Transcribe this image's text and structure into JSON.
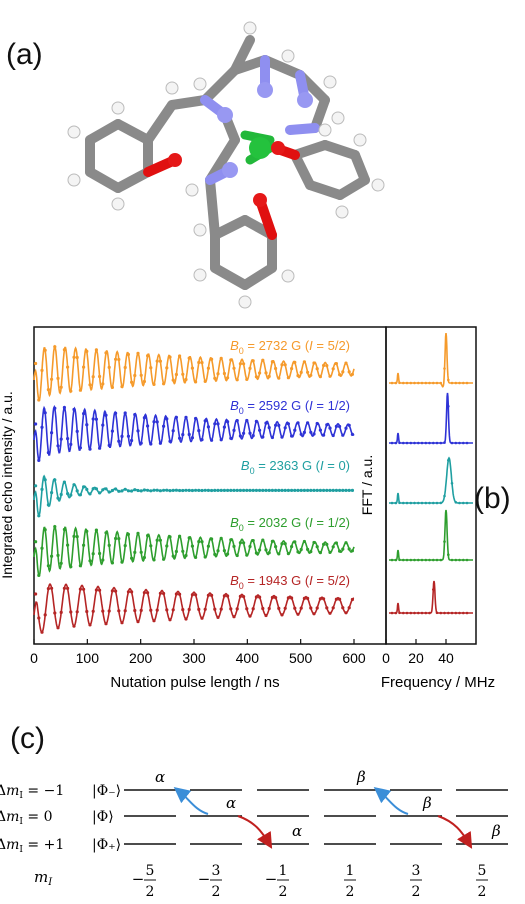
{
  "panels": {
    "a": "(a)",
    "b": "(b)",
    "c": "(c)"
  },
  "chart_data": [
    {
      "type": "line",
      "xlabel": "Nutation pulse length / ns",
      "ylabel": "Integrated echo intensity / a.u.",
      "xlim": [
        0,
        600
      ],
      "xticks": [
        "0",
        "100",
        "200",
        "300",
        "400",
        "500",
        "600"
      ],
      "grid": false,
      "series": [
        {
          "name": "B0 = 2732 G (I = 5/2)",
          "label_b": "B",
          "label_sub": "0",
          "label_rest": " = 2732 G (",
          "label_i": "I",
          "label_tail": " = 5/2)",
          "color": "#f59a2b",
          "period_ns": 19.5,
          "decay_ns": 420,
          "offset": 0.5
        },
        {
          "name": "B0 = 2592 G (I = 1/2)",
          "label_b": "B",
          "label_sub": "0",
          "label_rest": " = 2592 G (",
          "label_i": "I",
          "label_tail": " = 1/2)",
          "color": "#2e33d6",
          "period_ns": 19.0,
          "decay_ns": 380,
          "offset": 0.3
        },
        {
          "name": "B0 = 2363 G (I = 0)",
          "label_b": "B",
          "label_sub": "0",
          "label_rest": " = 2363 G (",
          "label_i": "I",
          "label_tail": " = 0)",
          "color": "#1f9fa1",
          "period_ns": 19.0,
          "decay_ns": 55,
          "offset": 0.2
        },
        {
          "name": "B0 = 2032 G (I = 1/2)",
          "label_b": "B",
          "label_sub": "0",
          "label_rest": " = 2032 G (",
          "label_i": "I",
          "label_tail": " = 1/2)",
          "color": "#2e9e2e",
          "period_ns": 19.5,
          "decay_ns": 360,
          "offset": 0.3
        },
        {
          "name": "B0 = 1943 G (I = 5/2)",
          "label_b": "B",
          "label_sub": "0",
          "label_rest": " = 1943 G (",
          "label_i": "I",
          "label_tail": " = 5/2)",
          "color": "#b52525",
          "period_ns": 30.0,
          "decay_ns": 500,
          "offset": 0.3
        }
      ]
    },
    {
      "type": "line",
      "xlabel": "Frequency / MHz",
      "ylabel": "FFT / a.u.",
      "xlim": [
        0,
        60
      ],
      "xticks": [
        "0",
        "20",
        "40"
      ],
      "series": [
        {
          "name": "2732 G",
          "color": "#f59a2b",
          "small_peak_mhz": 8,
          "main_peak_mhz": 40
        },
        {
          "name": "2592 G",
          "color": "#2e33d6",
          "small_peak_mhz": 8,
          "main_peak_mhz": 41
        },
        {
          "name": "2363 G",
          "color": "#1f9fa1",
          "small_peak_mhz": 8,
          "main_peak_mhz": 42
        },
        {
          "name": "2032 G",
          "color": "#2e9e2e",
          "small_peak_mhz": 8,
          "main_peak_mhz": 40
        },
        {
          "name": "1943 G",
          "color": "#b52525",
          "small_peak_mhz": 8,
          "main_peak_mhz": 32
        }
      ]
    }
  ],
  "diagram_c": {
    "rows": [
      {
        "delta_pre": "Δ",
        "delta_var": "m",
        "delta_sub": "I",
        "delta_val": " = −1",
        "ket": "|Φ₋⟩"
      },
      {
        "delta_pre": "Δ",
        "delta_var": "m",
        "delta_sub": "I",
        "delta_val": " = 0",
        "ket": "|Φ⟩"
      },
      {
        "delta_pre": "Δ",
        "delta_var": "m",
        "delta_sub": "I",
        "delta_val": " = +1",
        "ket": "|Φ₊⟩"
      }
    ],
    "mi_label": "m",
    "mi_sub": "I",
    "mi_values": [
      {
        "sign": "−",
        "num": "5",
        "den": "2"
      },
      {
        "sign": "−",
        "num": "3",
        "den": "2"
      },
      {
        "sign": "−",
        "num": "1",
        "den": "2"
      },
      {
        "sign": "",
        "num": "1",
        "den": "2"
      },
      {
        "sign": "",
        "num": "3",
        "den": "2"
      },
      {
        "sign": "",
        "num": "5",
        "den": "2"
      }
    ],
    "greek": {
      "alpha": "α",
      "beta": "β"
    },
    "arrow_colors": {
      "blue": "#3b8ed8",
      "red": "#c0201f"
    }
  }
}
